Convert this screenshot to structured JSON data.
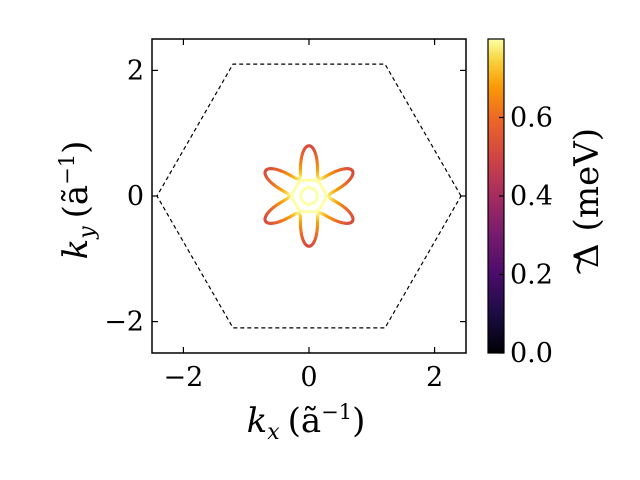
{
  "chart_data": {
    "type": "line",
    "title": "",
    "xlabel": {
      "base": "k",
      "sub": "x",
      "unit": "(ã",
      "exp": "−1",
      "close": ")"
    },
    "ylabel": {
      "base": "k",
      "sub": "y",
      "unit": "(ã",
      "exp": "−1",
      "close": ")"
    },
    "xlim": [
      -2.5,
      2.5
    ],
    "ylim": [
      -2.5,
      2.5
    ],
    "xticks": [
      -2,
      0,
      2
    ],
    "yticks": [
      -2,
      0,
      2
    ],
    "xtick_labels": [
      "−2",
      "0",
      "2"
    ],
    "ytick_labels": [
      "−2",
      "0",
      "2"
    ],
    "series": [
      {
        "kind": "brillouin-zone-hexagon",
        "style": "dashed",
        "color": "#000000",
        "x": [
          2.42,
          1.21,
          -1.21,
          -2.42,
          -1.21,
          1.21,
          2.42
        ],
        "y": [
          0,
          2.1,
          2.1,
          0,
          -2.1,
          -2.1,
          0
        ]
      },
      {
        "kind": "fermi-surface-star",
        "shape": "six-pointed star",
        "r_outer": 0.8,
        "r_inner": 0.32,
        "gap_range_meV": [
          0.52,
          0.78
        ],
        "gap_at_tips_meV": 0.52,
        "gap_at_valleys_meV": 0.78
      },
      {
        "kind": "fermi-surface-ring",
        "shape": "slightly hexagonal ring",
        "radius": 0.26,
        "gap_meV": 0.8
      },
      {
        "kind": "fermi-surface-ring",
        "shape": "circle",
        "radius": 0.13,
        "gap_meV": 0.8
      }
    ],
    "colorbar": {
      "colormap": "inferno",
      "label": {
        "symbol": "Δ",
        "unit": "(meV)"
      },
      "range": [
        0,
        0.8
      ],
      "ticks": [
        0.0,
        0.2,
        0.4,
        0.6
      ],
      "tick_labels": [
        "0.0",
        "0.2",
        "0.4",
        "0.6"
      ]
    },
    "grid": false,
    "legend": "none"
  }
}
